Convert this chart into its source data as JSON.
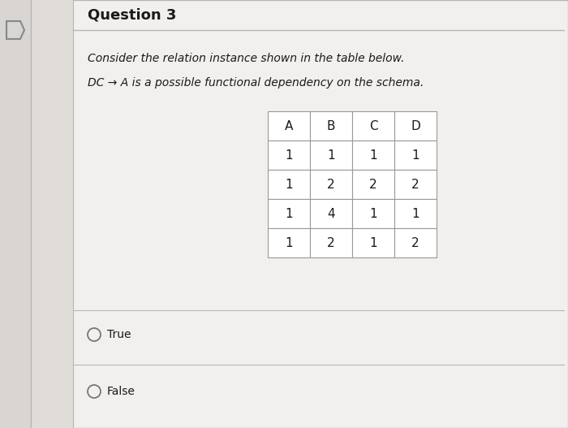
{
  "title": "Question 3",
  "text1": "Consider the relation instance shown in the table below.",
  "text2": "DC → A is a possible functional dependency on the schema.",
  "table_headers": [
    "A",
    "B",
    "C",
    "D"
  ],
  "table_data": [
    [
      1,
      1,
      1,
      1
    ],
    [
      1,
      2,
      2,
      2
    ],
    [
      1,
      4,
      1,
      1
    ],
    [
      1,
      2,
      1,
      2
    ]
  ],
  "options": [
    "True",
    "False"
  ],
  "bg_color": "#d8d5d2",
  "card_color": "#f2f0ee",
  "white_color": "#ffffff",
  "border_color": "#b8b5b2",
  "text_color": "#1a1a1a",
  "table_border_color": "#999999",
  "left_strip_color": "#e0ddd9",
  "title_fontsize": 13,
  "body_fontsize": 10,
  "option_fontsize": 10
}
